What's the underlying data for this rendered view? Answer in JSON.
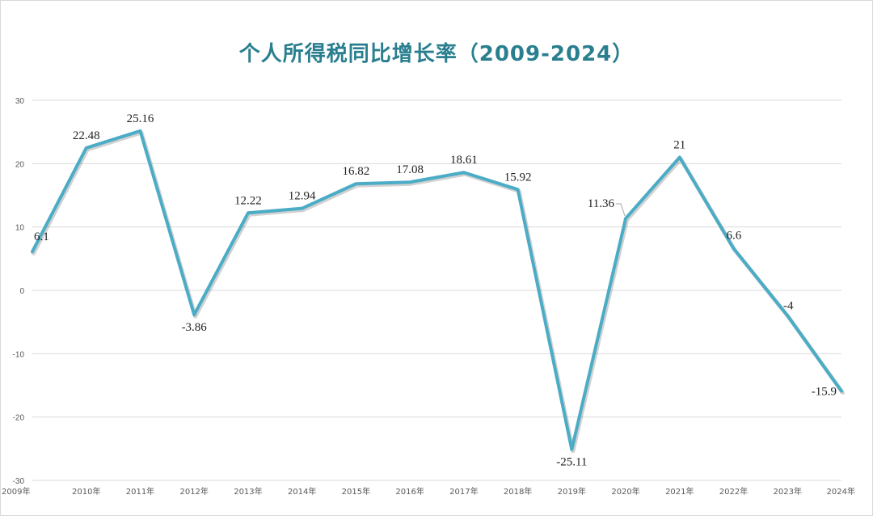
{
  "chart_data": {
    "type": "line",
    "title": "个人所得税同比增长率（2009-2024）",
    "xlabel": "",
    "ylabel": "",
    "categories": [
      "2009年",
      "2010年",
      "2011年",
      "2012年",
      "2013年",
      "2014年",
      "2015年",
      "2016年",
      "2017年",
      "2018年",
      "2019年",
      "2020年",
      "2021年",
      "2022年",
      "2023年",
      "2024年"
    ],
    "series": [
      {
        "values": [
          6.1,
          22.48,
          25.16,
          -3.86,
          12.22,
          12.94,
          16.82,
          17.08,
          18.61,
          15.92,
          -25.11,
          11.36,
          21,
          6.6,
          -4,
          -15.9
        ]
      }
    ],
    "data_labels": [
      "6.1",
      "22.48",
      "25.16",
      "-3.86",
      "12.22",
      "12.94",
      "16.82",
      "17.08",
      "18.61",
      "15.92",
      "-25.11",
      "11.36",
      "21",
      "6.6",
      "-4",
      "-15.9"
    ],
    "y_ticks": [
      "30",
      "20",
      "10",
      "0",
      "-10",
      "-20",
      "-30"
    ],
    "ylim": [
      -30,
      30
    ],
    "grid": true,
    "legend": "none",
    "line_color": "#4bacc6",
    "title_color": "#2a7f8f"
  }
}
